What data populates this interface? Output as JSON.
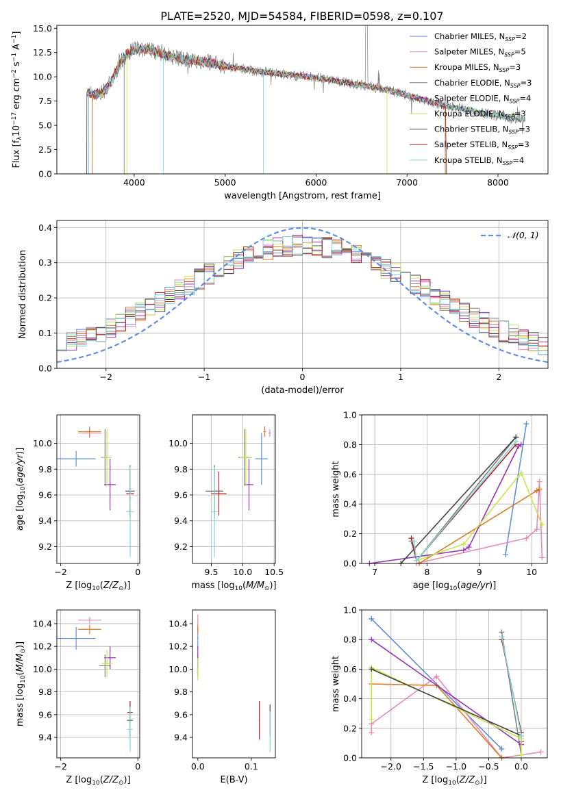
{
  "figure_title": "PLATE=2520, MJD=54584, FIBERID=0598, z=0.107",
  "colors": {
    "Chabrier MILES": "#5b8ee6",
    "Salpeter MILES": "#e88ab5",
    "Kroupa MILES": "#e07a22",
    "Chabrier ELODIE": "#7f7f7f",
    "Salpeter ELODIE": "#9b30b8",
    "Kroupa ELODIE": "#c8e64a",
    "Chabrier STELIB": "#444444",
    "Salpeter STELIB": "#b02222",
    "Kroupa STELIB": "#7fd8dc"
  },
  "chart_data": [
    {
      "id": "spectrum",
      "type": "line",
      "title": "PLATE=2520, MJD=54584, FIBERID=0598, z=0.107",
      "xlabel": "wavelength [Angstrom, rest frame]",
      "ylabel": "Flux [f",
      "xlim": [
        3150,
        8550
      ],
      "ylim": [
        0,
        15.3
      ],
      "xticks": [
        4000,
        5000,
        6000,
        7000,
        8000
      ],
      "yticks": [
        0.0,
        2.5,
        5.0,
        7.5,
        10.0,
        12.5,
        15.0
      ],
      "grid": false,
      "legend_position": "top-right",
      "legend": [
        {
          "model": "Chabrier MILES",
          "n": "2"
        },
        {
          "model": "Salpeter MILES",
          "n": "5"
        },
        {
          "model": "Kroupa MILES",
          "n": "3"
        },
        {
          "model": "Chabrier ELODIE",
          "n": "3"
        },
        {
          "model": "Salpeter ELODIE",
          "n": "4"
        },
        {
          "model": "Kroupa ELODIE",
          "n": "3"
        },
        {
          "model": "Chabrier STELIB",
          "n": "3"
        },
        {
          "model": "Salpeter STELIB",
          "n": "3"
        },
        {
          "model": "Kroupa STELIB",
          "n": "4"
        }
      ],
      "continuum_x": [
        3480,
        3550,
        3650,
        3750,
        3850,
        3950,
        4050,
        4150,
        4250,
        4350,
        4450,
        4550,
        4650,
        4750,
        4850,
        5000,
        5200,
        5400,
        5600,
        5800,
        6000,
        6200,
        6400,
        6600,
        6800,
        7000,
        7200,
        7400,
        7600,
        7800,
        8000,
        8200,
        8300
      ],
      "continuum_y": [
        8.5,
        8.2,
        8.3,
        9.5,
        11.5,
        12.6,
        12.9,
        12.8,
        12.5,
        12.2,
        12.0,
        11.8,
        11.7,
        11.6,
        11.4,
        11.1,
        10.8,
        10.5,
        10.3,
        10.1,
        9.9,
        9.6,
        9.3,
        9.0,
        8.6,
        8.1,
        7.6,
        7.1,
        6.7,
        6.3,
        6.0,
        5.7,
        5.6
      ]
    },
    {
      "id": "residuals",
      "type": "histogram",
      "xlabel": "(data-model)/error",
      "ylabel": "Normed distribution",
      "xlim": [
        -2.5,
        2.5
      ],
      "ylim": [
        0,
        0.42
      ],
      "xticks": [
        -2,
        -1,
        0,
        1,
        2
      ],
      "yticks": [
        0.0,
        0.1,
        0.2,
        0.3,
        0.4
      ],
      "grid": true,
      "legend_position": "top-right",
      "legend": [
        "𝒩(0, 1)"
      ],
      "normal_curve": {
        "mean": 0,
        "sigma": 1
      }
    },
    {
      "id": "age-vs-Z",
      "type": "errorbar",
      "xlabel": "Z [log",
      "ylabel": "age  [log",
      "xlim": [
        -2.1,
        0.05
      ],
      "ylim": [
        9.07,
        10.22
      ],
      "xticks": [
        -2,
        0
      ],
      "yticks": [
        9.2,
        9.4,
        9.6,
        9.8,
        10.0
      ],
      "grid": true,
      "points": [
        {
          "model": "Chabrier MILES",
          "x": -1.6,
          "xerr": 0.5,
          "y": 9.88,
          "yerr": 0.06
        },
        {
          "model": "Salpeter MILES",
          "x": -1.25,
          "xerr": 0.3,
          "y": 10.08,
          "yerr": 0.04
        },
        {
          "model": "Kroupa MILES",
          "x": -1.25,
          "xerr": 0.3,
          "y": 10.09,
          "yerr": 0.04
        },
        {
          "model": "Chabrier ELODIE",
          "x": -0.85,
          "xerr": 0.1,
          "y": 9.89,
          "yerr": 0.22
        },
        {
          "model": "Salpeter ELODIE",
          "x": -0.72,
          "xerr": 0.15,
          "y": 9.68,
          "yerr": 0.2
        },
        {
          "model": "Kroupa ELODIE",
          "x": -0.8,
          "xerr": 0.12,
          "y": 9.89,
          "yerr": 0.22
        },
        {
          "model": "Chabrier STELIB",
          "x": -0.2,
          "xerr": 0.12,
          "y": 9.63,
          "yerr": 0.2
        },
        {
          "model": "Salpeter STELIB",
          "x": -0.2,
          "xerr": 0.1,
          "y": 9.61,
          "yerr": 0.17
        },
        {
          "model": "Kroupa STELIB",
          "x": -0.2,
          "xerr": 0.1,
          "y": 9.47,
          "yerr": 0.35
        }
      ]
    },
    {
      "id": "age-vs-mass",
      "type": "errorbar",
      "xlabel": "mass [log",
      "ylabel": "",
      "xlim": [
        9.2,
        10.52
      ],
      "ylim": [
        9.07,
        10.22
      ],
      "xticks": [
        9.5,
        10.0,
        10.5
      ],
      "yticks": [
        9.2,
        9.4,
        9.6,
        9.8,
        10.0
      ],
      "grid": true,
      "points": [
        {
          "model": "Chabrier MILES",
          "x": 10.3,
          "xerr": 0.1,
          "y": 9.88,
          "yerr": 0.2
        },
        {
          "model": "Salpeter MILES",
          "x": 10.43,
          "xerr": 0.02,
          "y": 10.08,
          "yerr": 0.03
        },
        {
          "model": "Kroupa MILES",
          "x": 10.35,
          "xerr": 0.02,
          "y": 10.09,
          "yerr": 0.04
        },
        {
          "model": "Chabrier ELODIE",
          "x": 10.03,
          "xerr": 0.1,
          "y": 9.89,
          "yerr": 0.22
        },
        {
          "model": "Salpeter ELODIE",
          "x": 10.1,
          "xerr": 0.07,
          "y": 9.68,
          "yerr": 0.2
        },
        {
          "model": "Kroupa ELODIE",
          "x": 10.05,
          "xerr": 0.1,
          "y": 9.89,
          "yerr": 0.22
        },
        {
          "model": "Chabrier STELIB",
          "x": 9.55,
          "xerr": 0.14,
          "y": 9.63,
          "yerr": 0.2
        },
        {
          "model": "Salpeter STELIB",
          "x": 9.62,
          "xerr": 0.12,
          "y": 9.61,
          "yerr": 0.17
        },
        {
          "model": "Kroupa STELIB",
          "x": 9.55,
          "xerr": 0.05,
          "y": 9.47,
          "yerr": 0.35
        }
      ]
    },
    {
      "id": "mass-weight-vs-age",
      "type": "line",
      "xlabel": "age  [log",
      "ylabel": "mass weight",
      "xlim": [
        6.75,
        10.3
      ],
      "ylim": [
        0,
        1.0
      ],
      "xticks": [
        7,
        8,
        9,
        10
      ],
      "yticks": [
        0.0,
        0.2,
        0.4,
        0.6,
        0.8,
        1.0
      ],
      "grid": true,
      "series": [
        {
          "model": "Chabrier MILES",
          "x": [
            9.5,
            9.9
          ],
          "y": [
            0.06,
            0.94
          ]
        },
        {
          "model": "Salpeter MILES",
          "x": [
            7.8,
            9.9,
            10.1,
            10.15,
            10.2
          ],
          "y": [
            0.0,
            0.17,
            0.23,
            0.55,
            0.04
          ]
        },
        {
          "model": "Kroupa MILES",
          "x": [
            7.85,
            10.1,
            10.15
          ],
          "y": [
            0.0,
            0.49,
            0.5
          ]
        },
        {
          "model": "Chabrier ELODIE",
          "x": [
            7.7,
            7.8,
            9.7
          ],
          "y": [
            0.15,
            0.02,
            0.85
          ]
        },
        {
          "model": "Salpeter ELODIE",
          "x": [
            6.9,
            8.7,
            8.8,
            9.75,
            9.8
          ],
          "y": [
            0.0,
            0.09,
            0.11,
            0.79,
            0.8
          ]
        },
        {
          "model": "Kroupa ELODIE",
          "x": [
            7.8,
            8.7,
            9.8,
            10.2
          ],
          "y": [
            0.02,
            0.13,
            0.61,
            0.26
          ]
        },
        {
          "model": "Chabrier STELIB",
          "x": [
            7.5,
            9.7
          ],
          "y": [
            0.0,
            0.85
          ]
        },
        {
          "model": "Salpeter STELIB",
          "x": [
            7.7,
            7.8,
            9.7
          ],
          "y": [
            0.17,
            0.02,
            0.8
          ]
        },
        {
          "model": "Kroupa STELIB",
          "x": [
            7.75,
            7.8,
            9.7
          ],
          "y": [
            0.15,
            0.02,
            0.82
          ]
        }
      ]
    },
    {
      "id": "mass-vs-Z",
      "type": "errorbar",
      "xlabel": "Z [log",
      "ylabel": "mass [log",
      "xlim": [
        -2.1,
        0.05
      ],
      "ylim": [
        9.22,
        10.52
      ],
      "xticks": [
        -2,
        0
      ],
      "yticks": [
        9.4,
        9.6,
        9.8,
        10.0,
        10.2,
        10.4
      ],
      "grid": true,
      "points": [
        {
          "model": "Chabrier MILES",
          "x": -1.6,
          "xerr": 0.5,
          "y": 10.27,
          "yerr": 0.1
        },
        {
          "model": "Salpeter MILES",
          "x": -1.25,
          "xerr": 0.3,
          "y": 10.43,
          "yerr": 0.03
        },
        {
          "model": "Kroupa MILES",
          "x": -1.25,
          "xerr": 0.3,
          "y": 10.35,
          "yerr": 0.04
        },
        {
          "model": "Chabrier ELODIE",
          "x": -0.85,
          "xerr": 0.15,
          "y": 10.03,
          "yerr": 0.1
        },
        {
          "model": "Salpeter ELODIE",
          "x": -0.72,
          "xerr": 0.15,
          "y": 10.1,
          "yerr": 0.1
        },
        {
          "model": "Kroupa ELODIE",
          "x": -0.8,
          "xerr": 0.15,
          "y": 10.05,
          "yerr": 0.12
        },
        {
          "model": "Chabrier STELIB",
          "x": -0.2,
          "xerr": 0.07,
          "y": 9.55,
          "yerr": 0.14
        },
        {
          "model": "Salpeter STELIB",
          "x": -0.2,
          "xerr": 0.07,
          "y": 9.62,
          "yerr": 0.1
        },
        {
          "model": "Kroupa STELIB",
          "x": -0.2,
          "xerr": 0.07,
          "y": 9.47,
          "yerr": 0.2
        }
      ]
    },
    {
      "id": "mass-vs-EBV",
      "type": "errorbar",
      "xlabel": "E(B-V)",
      "ylabel": "",
      "xlim": [
        -0.01,
        0.145
      ],
      "ylim": [
        9.22,
        10.52
      ],
      "xticks": [
        0.0,
        0.1
      ],
      "yticks": [
        9.4,
        9.6,
        9.8,
        10.0,
        10.2,
        10.4
      ],
      "grid": false,
      "points": [
        {
          "model": "Chabrier MILES",
          "x": 0.0,
          "xerr": 0.001,
          "y": 10.27,
          "yerr": 0.1
        },
        {
          "model": "Salpeter MILES",
          "x": 0.0,
          "xerr": 0.001,
          "y": 10.43,
          "yerr": 0.05
        },
        {
          "model": "Kroupa MILES",
          "x": 0.0,
          "xerr": 0.001,
          "y": 10.35,
          "yerr": 0.04
        },
        {
          "model": "Chabrier ELODIE",
          "x": 0.0,
          "xerr": 0.001,
          "y": 10.03,
          "yerr": 0.1
        },
        {
          "model": "Salpeter ELODIE",
          "x": 0.0,
          "xerr": 0.001,
          "y": 10.1,
          "yerr": 0.1
        },
        {
          "model": "Kroupa ELODIE",
          "x": 0.0,
          "xerr": 0.001,
          "y": 10.0,
          "yerr": 0.1
        },
        {
          "model": "Chabrier STELIB",
          "x": 0.135,
          "xerr": 0.001,
          "y": 9.55,
          "yerr": 0.14
        },
        {
          "model": "Salpeter STELIB",
          "x": 0.115,
          "xerr": 0.001,
          "y": 9.55,
          "yerr": 0.17
        },
        {
          "model": "Kroupa STELIB",
          "x": 0.135,
          "xerr": 0.001,
          "y": 9.45,
          "yerr": 0.18
        }
      ]
    },
    {
      "id": "mass-weight-vs-Z",
      "type": "line",
      "xlabel": "Z [log",
      "ylabel": "mass weight",
      "xlim": [
        -2.45,
        0.4
      ],
      "ylim": [
        0,
        1.0
      ],
      "xticks": [
        -2.0,
        -1.5,
        -1.0,
        -0.5,
        0.0
      ],
      "yticks": [
        0.0,
        0.2,
        0.4,
        0.6,
        0.8,
        1.0
      ],
      "grid": true,
      "series": [
        {
          "model": "Chabrier MILES",
          "x": [
            -2.3,
            -0.3
          ],
          "y": [
            0.94,
            0.06
          ]
        },
        {
          "model": "Salpeter MILES",
          "x": [
            -2.3,
            -2.3,
            -1.3,
            -0.3,
            0.3
          ],
          "y": [
            0.17,
            0.23,
            0.55,
            0.0,
            0.04
          ]
        },
        {
          "model": "Kroupa MILES",
          "x": [
            -2.3,
            -1.3,
            -0.3
          ],
          "y": [
            0.5,
            0.49,
            0.0
          ]
        },
        {
          "model": "Chabrier ELODIE",
          "x": [
            -0.3,
            0.0
          ],
          "y": [
            0.85,
            0.02
          ]
        },
        {
          "model": "Salpeter ELODIE",
          "x": [
            -2.3,
            0.0,
            0.0
          ],
          "y": [
            0.8,
            0.09,
            0.11
          ]
        },
        {
          "model": "Kroupa ELODIE",
          "x": [
            -2.3,
            -2.3,
            0.0,
            0.0
          ],
          "y": [
            0.26,
            0.61,
            0.13,
            0.02
          ]
        },
        {
          "model": "Chabrier STELIB",
          "x": [
            -2.3,
            0.0
          ],
          "y": [
            0.6,
            0.15
          ]
        },
        {
          "model": "Salpeter STELIB",
          "x": [
            -0.3,
            0.0
          ],
          "y": [
            0.8,
            0.17
          ]
        },
        {
          "model": "Kroupa STELIB",
          "x": [
            -0.3,
            0.0
          ],
          "y": [
            0.82,
            0.15
          ]
        }
      ]
    }
  ]
}
